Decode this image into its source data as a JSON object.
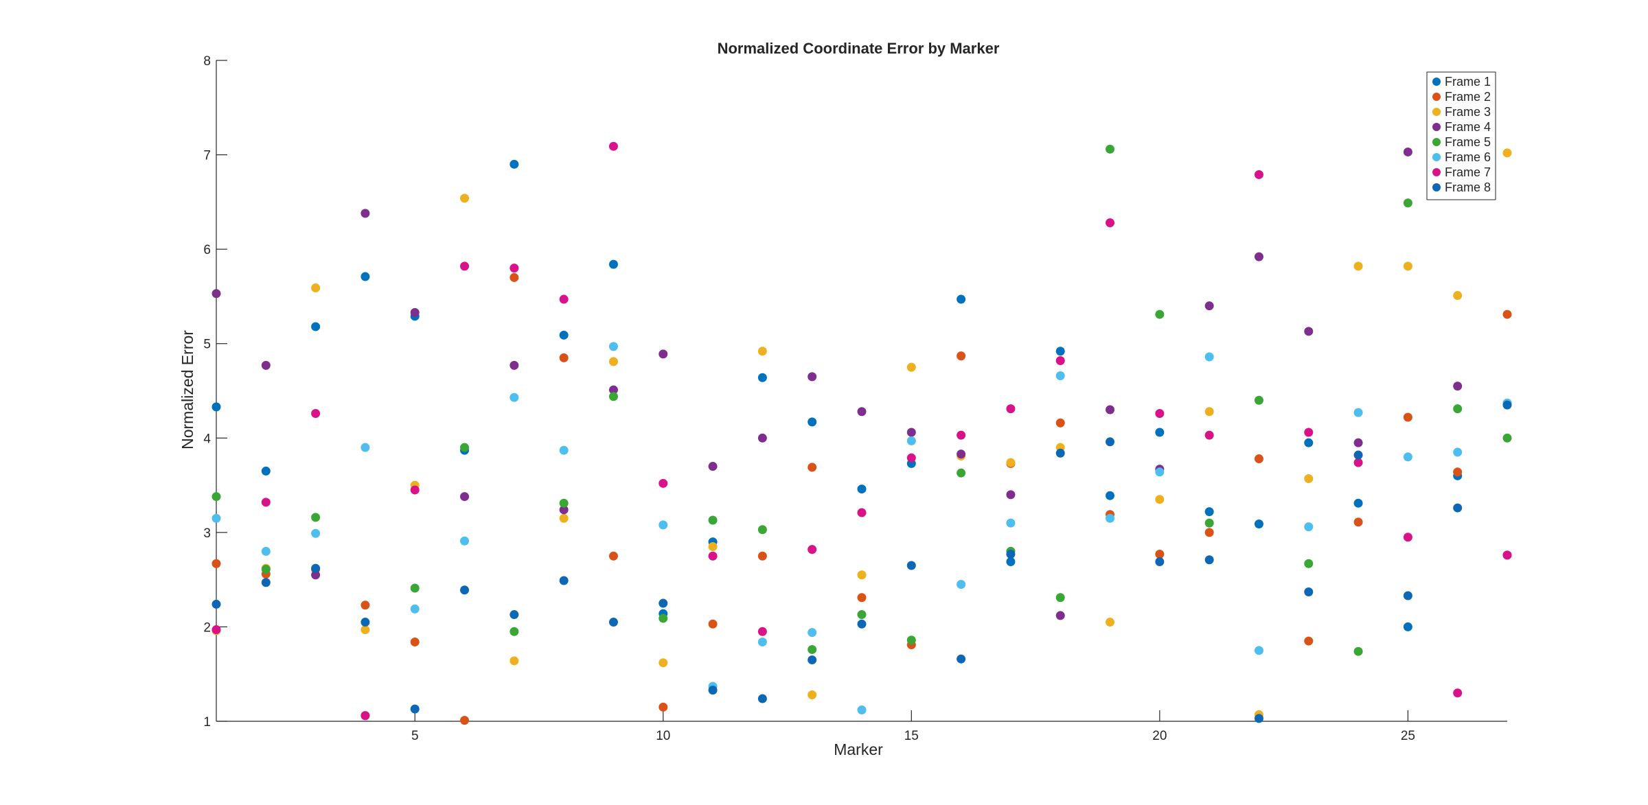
{
  "chart_data": {
    "type": "scatter",
    "title": "Normalized Coordinate Error by Marker",
    "xlabel": "Marker",
    "ylabel": "Normalized Error",
    "xlim": [
      1,
      27
    ],
    "ylim": [
      1,
      8
    ],
    "x_ticks": [
      5,
      10,
      15,
      20,
      25
    ],
    "y_ticks": [
      1,
      2,
      3,
      4,
      5,
      6,
      7,
      8
    ],
    "grid": false,
    "legend_position": "top-right",
    "x": [
      1,
      2,
      3,
      4,
      5,
      6,
      7,
      8,
      9,
      10,
      11,
      12,
      13,
      14,
      15,
      16,
      17,
      18,
      19,
      20,
      21,
      22,
      23,
      24,
      25,
      26,
      27
    ],
    "series": [
      {
        "name": "Frame 1",
        "color": "#0072BD",
        "values": [
          4.33,
          3.65,
          5.18,
          5.71,
          5.29,
          3.87,
          6.9,
          5.09,
          5.84,
          2.14,
          2.9,
          4.64,
          4.17,
          3.46,
          3.73,
          5.47,
          2.69,
          4.92,
          3.39,
          4.06,
          3.22,
          3.09,
          3.95,
          3.31,
          2.0,
          3.6,
          4.37
        ]
      },
      {
        "name": "Frame 2",
        "color": "#D95319",
        "values": [
          2.67,
          2.56,
          2.61,
          2.23,
          1.84,
          1.01,
          5.7,
          4.85,
          2.75,
          1.15,
          2.03,
          2.75,
          3.69,
          2.31,
          1.81,
          4.87,
          3.73,
          4.16,
          3.19,
          2.77,
          3.0,
          3.78,
          1.85,
          3.11,
          4.22,
          3.64,
          5.31
        ]
      },
      {
        "name": "Frame 3",
        "color": "#EDB120",
        "values": [
          1.96,
          2.62,
          5.59,
          1.97,
          3.5,
          6.54,
          1.64,
          3.15,
          4.81,
          1.62,
          2.85,
          4.92,
          1.28,
          2.55,
          4.75,
          3.81,
          3.74,
          3.9,
          2.05,
          3.35,
          4.28,
          1.07,
          3.57,
          5.82,
          5.82,
          5.51,
          7.02
        ]
      },
      {
        "name": "Frame 4",
        "color": "#7E2F8E",
        "values": [
          5.53,
          4.77,
          2.55,
          6.38,
          5.33,
          3.38,
          4.77,
          3.24,
          4.51,
          4.89,
          3.7,
          4.0,
          4.65,
          4.28,
          4.06,
          3.83,
          3.4,
          2.12,
          4.3,
          3.67,
          5.4,
          5.92,
          5.13,
          3.95,
          7.03,
          4.55,
          2.76
        ]
      },
      {
        "name": "Frame 5",
        "color": "#3AA635",
        "values": [
          3.38,
          2.61,
          3.16,
          1.06,
          2.41,
          3.9,
          1.95,
          3.31,
          4.44,
          2.09,
          3.13,
          3.03,
          1.76,
          2.13,
          1.86,
          3.63,
          2.8,
          2.31,
          7.06,
          5.31,
          3.1,
          4.4,
          2.67,
          1.74,
          6.49,
          4.31,
          4.0
        ]
      },
      {
        "name": "Frame 6",
        "color": "#4DBEEE",
        "values": [
          3.15,
          2.8,
          2.99,
          3.9,
          2.19,
          2.91,
          4.43,
          3.87,
          4.97,
          3.08,
          1.37,
          1.84,
          1.94,
          1.12,
          3.97,
          2.45,
          3.1,
          4.66,
          3.15,
          3.64,
          4.86,
          1.75,
          3.06,
          4.27,
          3.8,
          3.85,
          4.37
        ]
      },
      {
        "name": "Frame 7",
        "color": "#D9128A",
        "values": [
          1.97,
          3.32,
          4.26,
          1.06,
          3.45,
          5.82,
          5.8,
          5.47,
          7.09,
          3.52,
          2.75,
          1.95,
          2.82,
          3.21,
          3.79,
          4.03,
          4.31,
          4.82,
          6.28,
          4.26,
          4.03,
          6.79,
          4.06,
          3.74,
          2.95,
          1.3,
          2.76
        ]
      },
      {
        "name": "Frame 8",
        "color": "#0E67B5",
        "values": [
          2.24,
          2.47,
          2.62,
          2.05,
          1.13,
          2.39,
          2.13,
          2.49,
          2.05,
          2.25,
          1.33,
          1.24,
          1.65,
          2.03,
          2.65,
          1.66,
          2.77,
          3.84,
          3.96,
          2.69,
          2.71,
          1.03,
          2.37,
          3.82,
          2.33,
          3.26,
          4.35
        ]
      }
    ]
  }
}
